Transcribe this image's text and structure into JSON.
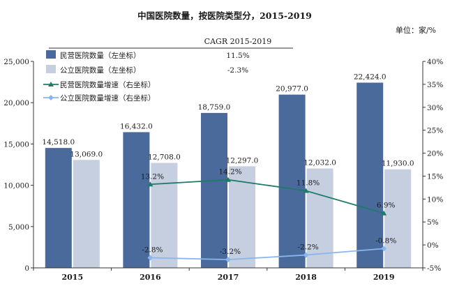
{
  "chart_data": {
    "type": "bar+line",
    "title": "中国医院数量，按医院类型分，2015-2019",
    "unit_label": "单位：家/%",
    "categories": [
      "2015",
      "2016",
      "2017",
      "2018",
      "2019"
    ],
    "y_left": {
      "min": 0,
      "max": 25000,
      "ticks": [
        0,
        5000,
        10000,
        15000,
        20000,
        25000
      ],
      "tick_labels": [
        "0",
        "5,000",
        "10,000",
        "15,000",
        "20,000",
        "25,000"
      ]
    },
    "y_right": {
      "min": -5,
      "max": 40,
      "ticks": [
        -5,
        0,
        5,
        10,
        15,
        20,
        25,
        30,
        35,
        40
      ],
      "tick_labels": [
        "-5%",
        "0%",
        "5%",
        "10%",
        "15%",
        "20%",
        "25%",
        "30%",
        "35%",
        "40%"
      ]
    },
    "bars": [
      {
        "name": "民营医院数量（左坐标）",
        "color": "#4a6a9c",
        "values": [
          14518,
          16432,
          18759,
          20977,
          22424
        ],
        "labels": [
          "14,518.0",
          "16,432.0",
          "18,759.0",
          "20,977.0",
          "22,424.0"
        ]
      },
      {
        "name": "公立医院数量（左坐标）",
        "color": "#c5cfe0",
        "values": [
          13069,
          12708,
          12297,
          12032,
          11930
        ],
        "labels": [
          "13,069.0",
          "12,708.0",
          "12,297.0",
          "12,032.0",
          "11,930.0"
        ]
      }
    ],
    "lines": [
      {
        "name": "民营医院数量增速（右坐标）",
        "color": "#1e7b68",
        "x": [
          "2016",
          "2017",
          "2018",
          "2019"
        ],
        "values": [
          13.2,
          14.2,
          11.8,
          6.9
        ],
        "labels": [
          "13.2%",
          "14.2%",
          "11.8%",
          "6.9%"
        ]
      },
      {
        "name": "公立医院数量增速（右坐标）",
        "color": "#8ab6ee",
        "x": [
          "2016",
          "2017",
          "2018",
          "2019"
        ],
        "values": [
          -2.8,
          -3.2,
          -2.2,
          -0.8
        ],
        "labels": [
          "-2.8%",
          "-3.2%",
          "-2.2%",
          "-0.8%"
        ]
      }
    ],
    "cagr_title": "CAGR 2015-2019",
    "cagr": [
      "11.5%",
      "-2.3%"
    ]
  }
}
